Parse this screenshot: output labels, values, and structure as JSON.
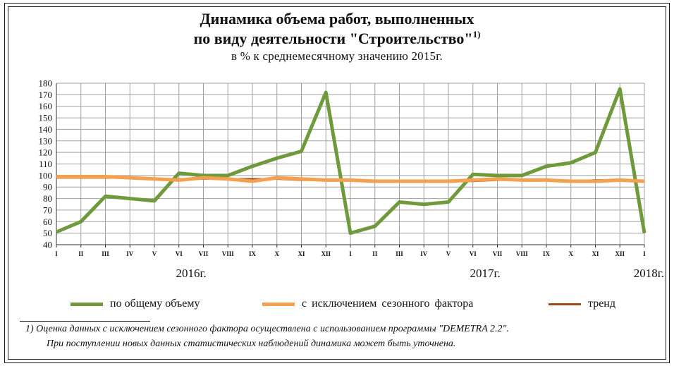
{
  "title_line1": "Динамика объема работ, выполненных",
  "title_line2": "по виду деятельности \"Строительство\"",
  "title_sup": "1)",
  "subtitle": "в % к среднемесячному значению 2015г.",
  "footnote_line1": "1) Оценка данных с исключением сезонного фактора осуществлена с использованием программы \"DEMETRA 2.2\".",
  "footnote_line2": "При поступлении новых данных статистических наблюдений динамика может быть уточнена.",
  "colors": {
    "total": "#6f9a3b",
    "seasonal": "#f5a04e",
    "trend": "#9c4a16",
    "grid": "#a0a0a0"
  },
  "chart_data": {
    "type": "line",
    "categories": [
      "I",
      "II",
      "III",
      "IV",
      "V",
      "VI",
      "VII",
      "VIII",
      "IX",
      "X",
      "XI",
      "XII",
      "I",
      "II",
      "III",
      "IV",
      "V",
      "VI",
      "VII",
      "VIII",
      "IX",
      "X",
      "XI",
      "XII",
      "I"
    ],
    "year_labels": [
      {
        "label": "2016г.",
        "index": 5.5
      },
      {
        "label": "2017г.",
        "index": 17.5
      },
      {
        "label": "2018г.",
        "index": 24
      }
    ],
    "y_ticks": [
      "40",
      "50",
      "60",
      "70",
      "80",
      "90",
      "100",
      "110",
      "120",
      "130",
      "140",
      "150",
      "160",
      "170",
      "180"
    ],
    "ylim": [
      40,
      180
    ],
    "grid": true,
    "legend_position": "bottom",
    "series": [
      {
        "name": "по общему объему",
        "color": "#6f9a3b",
        "values": [
          51,
          60,
          82,
          80,
          78,
          102,
          100,
          100,
          108,
          115,
          121,
          172,
          50,
          56,
          77,
          75,
          77,
          101,
          100,
          100,
          108,
          111,
          120,
          175,
          50
        ]
      },
      {
        "name": "с исключением сезонного фактора",
        "color": "#f5a04e",
        "values": [
          99,
          99,
          99,
          98,
          97,
          96,
          98,
          97,
          95,
          98,
          97,
          96,
          96,
          95,
          95,
          95,
          95,
          96,
          97,
          96,
          96,
          95,
          95,
          96,
          95
        ]
      },
      {
        "name": "тренд",
        "color": "#9c4a16",
        "values": [
          98,
          98,
          98,
          98,
          97,
          97,
          97,
          97,
          97,
          97,
          96,
          96,
          96,
          95,
          95,
          95,
          95,
          95,
          96,
          96,
          96,
          95,
          96,
          96,
          null
        ]
      }
    ]
  }
}
